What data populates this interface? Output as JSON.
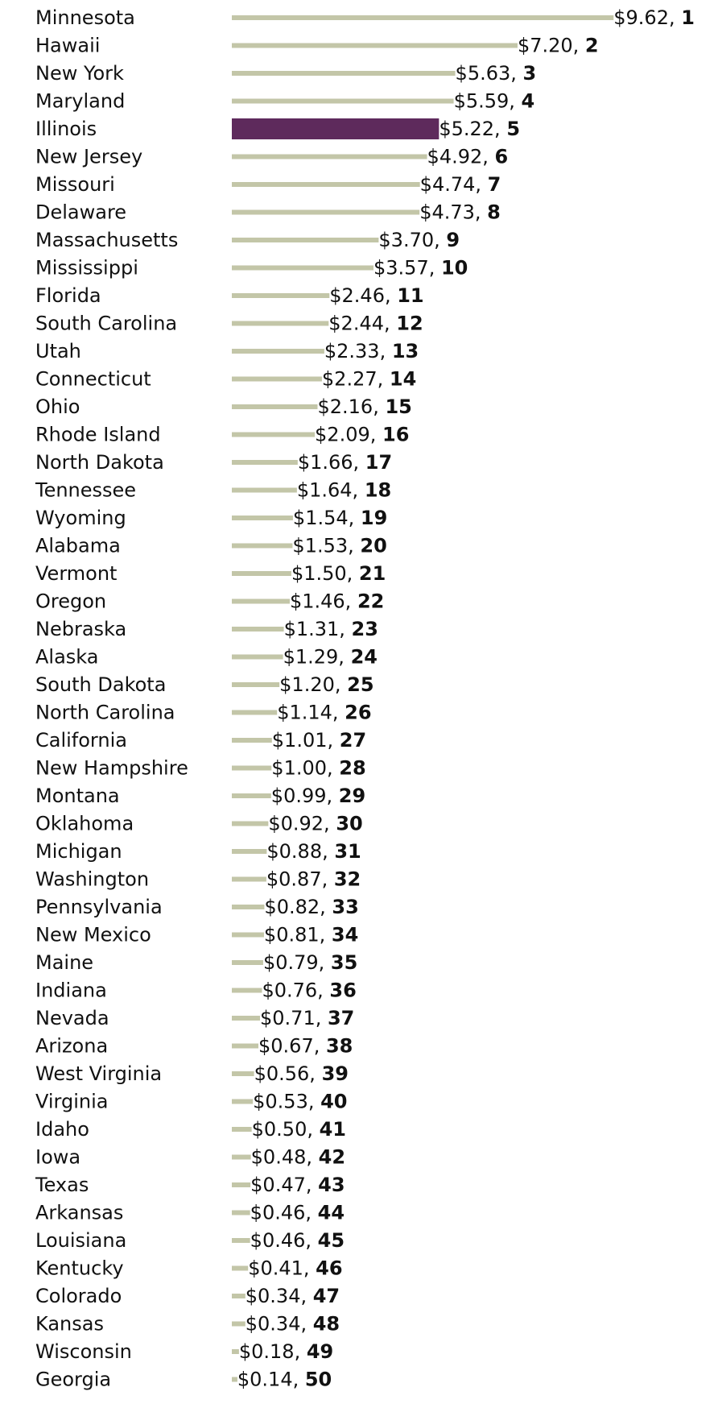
{
  "chart_data": {
    "type": "bar",
    "orientation": "horizontal",
    "highlight": "Illinois",
    "colors": {
      "bar": "#c3c6a8",
      "highlight": "#5e2a5c"
    },
    "xlim": [
      0,
      9.62
    ],
    "grid": false,
    "rows": [
      {
        "state": "Minnesota",
        "value": 9.62,
        "value_label": "$9.62,",
        "rank": "1"
      },
      {
        "state": "Hawaii",
        "value": 7.2,
        "value_label": "$7.20,",
        "rank": "2"
      },
      {
        "state": "New York",
        "value": 5.63,
        "value_label": "$5.63,",
        "rank": "3"
      },
      {
        "state": "Maryland",
        "value": 5.59,
        "value_label": "$5.59,",
        "rank": "4"
      },
      {
        "state": "Illinois",
        "value": 5.22,
        "value_label": "$5.22,",
        "rank": "5"
      },
      {
        "state": "New Jersey",
        "value": 4.92,
        "value_label": "$4.92,",
        "rank": "6"
      },
      {
        "state": "Missouri",
        "value": 4.74,
        "value_label": "$4.74,",
        "rank": "7"
      },
      {
        "state": "Delaware",
        "value": 4.73,
        "value_label": "$4.73,",
        "rank": "8"
      },
      {
        "state": "Massachusetts",
        "value": 3.7,
        "value_label": "$3.70,",
        "rank": "9"
      },
      {
        "state": "Mississippi",
        "value": 3.57,
        "value_label": "$3.57,",
        "rank": "10"
      },
      {
        "state": "Florida",
        "value": 2.46,
        "value_label": "$2.46,",
        "rank": "11"
      },
      {
        "state": "South Carolina",
        "value": 2.44,
        "value_label": "$2.44,",
        "rank": "12"
      },
      {
        "state": "Utah",
        "value": 2.33,
        "value_label": "$2.33,",
        "rank": "13"
      },
      {
        "state": "Connecticut",
        "value": 2.27,
        "value_label": "$2.27,",
        "rank": "14"
      },
      {
        "state": "Ohio",
        "value": 2.16,
        "value_label": "$2.16,",
        "rank": "15"
      },
      {
        "state": "Rhode Island",
        "value": 2.09,
        "value_label": "$2.09,",
        "rank": "16"
      },
      {
        "state": "North Dakota",
        "value": 1.66,
        "value_label": "$1.66,",
        "rank": "17"
      },
      {
        "state": "Tennessee",
        "value": 1.64,
        "value_label": "$1.64,",
        "rank": "18"
      },
      {
        "state": "Wyoming",
        "value": 1.54,
        "value_label": "$1.54,",
        "rank": "19"
      },
      {
        "state": "Alabama",
        "value": 1.53,
        "value_label": "$1.53,",
        "rank": "20"
      },
      {
        "state": "Vermont",
        "value": 1.5,
        "value_label": "$1.50,",
        "rank": "21"
      },
      {
        "state": "Oregon",
        "value": 1.46,
        "value_label": "$1.46,",
        "rank": "22"
      },
      {
        "state": "Nebraska",
        "value": 1.31,
        "value_label": "$1.31,",
        "rank": "23"
      },
      {
        "state": "Alaska",
        "value": 1.29,
        "value_label": "$1.29,",
        "rank": "24"
      },
      {
        "state": "South Dakota",
        "value": 1.2,
        "value_label": "$1.20,",
        "rank": "25"
      },
      {
        "state": "North Carolina",
        "value": 1.14,
        "value_label": "$1.14,",
        "rank": "26"
      },
      {
        "state": "California",
        "value": 1.01,
        "value_label": "$1.01,",
        "rank": "27"
      },
      {
        "state": "New Hampshire",
        "value": 1.0,
        "value_label": "$1.00,",
        "rank": "28"
      },
      {
        "state": "Montana",
        "value": 0.99,
        "value_label": "$0.99,",
        "rank": "29"
      },
      {
        "state": "Oklahoma",
        "value": 0.92,
        "value_label": "$0.92,",
        "rank": "30"
      },
      {
        "state": "Michigan",
        "value": 0.88,
        "value_label": "$0.88,",
        "rank": "31"
      },
      {
        "state": "Washington",
        "value": 0.87,
        "value_label": "$0.87,",
        "rank": "32"
      },
      {
        "state": "Pennsylvania",
        "value": 0.82,
        "value_label": "$0.82,",
        "rank": "33"
      },
      {
        "state": "New Mexico",
        "value": 0.81,
        "value_label": "$0.81,",
        "rank": "34"
      },
      {
        "state": "Maine",
        "value": 0.79,
        "value_label": "$0.79,",
        "rank": "35"
      },
      {
        "state": "Indiana",
        "value": 0.76,
        "value_label": "$0.76,",
        "rank": "36"
      },
      {
        "state": "Nevada",
        "value": 0.71,
        "value_label": "$0.71,",
        "rank": "37"
      },
      {
        "state": "Arizona",
        "value": 0.67,
        "value_label": "$0.67,",
        "rank": "38"
      },
      {
        "state": "West Virginia",
        "value": 0.56,
        "value_label": "$0.56,",
        "rank": "39"
      },
      {
        "state": "Virginia",
        "value": 0.53,
        "value_label": "$0.53,",
        "rank": "40"
      },
      {
        "state": "Idaho",
        "value": 0.5,
        "value_label": "$0.50,",
        "rank": "41"
      },
      {
        "state": "Iowa",
        "value": 0.48,
        "value_label": "$0.48,",
        "rank": "42"
      },
      {
        "state": "Texas",
        "value": 0.47,
        "value_label": "$0.47,",
        "rank": "43"
      },
      {
        "state": "Arkansas",
        "value": 0.46,
        "value_label": "$0.46,",
        "rank": "44"
      },
      {
        "state": "Louisiana",
        "value": 0.46,
        "value_label": "$0.46,",
        "rank": "45"
      },
      {
        "state": "Kentucky",
        "value": 0.41,
        "value_label": "$0.41,",
        "rank": "46"
      },
      {
        "state": "Colorado",
        "value": 0.34,
        "value_label": "$0.34,",
        "rank": "47"
      },
      {
        "state": "Kansas",
        "value": 0.34,
        "value_label": "$0.34,",
        "rank": "48"
      },
      {
        "state": "Wisconsin",
        "value": 0.18,
        "value_label": "$0.18,",
        "rank": "49"
      },
      {
        "state": "Georgia",
        "value": 0.14,
        "value_label": "$0.14,",
        "rank": "50"
      }
    ]
  }
}
